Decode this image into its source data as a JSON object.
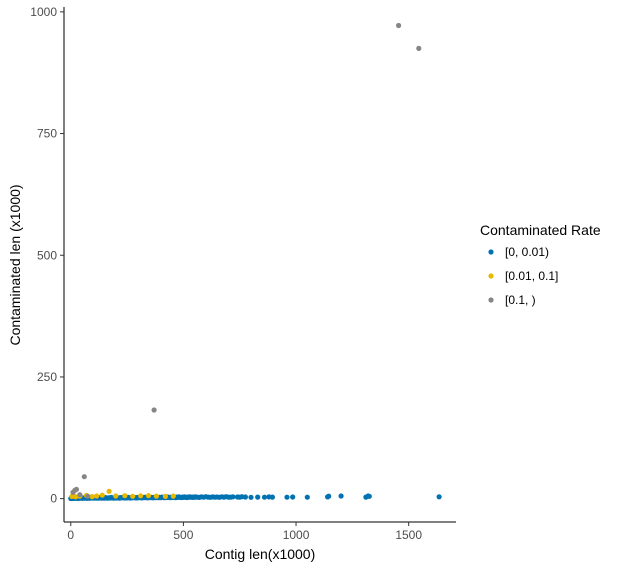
{
  "chart_data": {
    "type": "scatter",
    "xlabel": "Contig len(x1000)",
    "ylabel": "Contaminated len (x1000)",
    "xlim": [
      -30,
      1710
    ],
    "ylim": [
      -48,
      1010
    ],
    "xticks": [
      0,
      500,
      1000,
      1500
    ],
    "yticks": [
      0,
      250,
      500,
      750,
      1000
    ],
    "grid": false,
    "legend": {
      "title": "Contaminated Rate",
      "placement": "right"
    },
    "series": [
      {
        "name": "[0, 0.01)",
        "color": "#0072B2",
        "points": [
          [
            0,
            0.3
          ],
          [
            3,
            0.5
          ],
          [
            6,
            0.8
          ],
          [
            9,
            0.4
          ],
          [
            12,
            1.0
          ],
          [
            15,
            0.6
          ],
          [
            18,
            1.2
          ],
          [
            21,
            0.7
          ],
          [
            24,
            1.4
          ],
          [
            27,
            0.9
          ],
          [
            30,
            1.1
          ],
          [
            34,
            0.5
          ],
          [
            38,
            1.5
          ],
          [
            42,
            0.8
          ],
          [
            46,
            1.3
          ],
          [
            50,
            0.6
          ],
          [
            54,
            1.7
          ],
          [
            58,
            1.0
          ],
          [
            62,
            0.8
          ],
          [
            66,
            1.6
          ],
          [
            70,
            1.2
          ],
          [
            74,
            0.7
          ],
          [
            78,
            1.8
          ],
          [
            82,
            1.1
          ],
          [
            86,
            0.9
          ],
          [
            90,
            1.5
          ],
          [
            95,
            1.3
          ],
          [
            100,
            0.8
          ],
          [
            105,
            2.0
          ],
          [
            110,
            1.4
          ],
          [
            115,
            0.9
          ],
          [
            120,
            1.7
          ],
          [
            125,
            1.1
          ],
          [
            130,
            2.1
          ],
          [
            135,
            1.3
          ],
          [
            140,
            0.9
          ],
          [
            145,
            1.8
          ],
          [
            150,
            1.2
          ],
          [
            155,
            2.2
          ],
          [
            160,
            1.4
          ],
          [
            165,
            1.0
          ],
          [
            170,
            1.9
          ],
          [
            175,
            1.3
          ],
          [
            180,
            2.3
          ],
          [
            185,
            1.5
          ],
          [
            190,
            1.1
          ],
          [
            195,
            2.0
          ],
          [
            200,
            1.4
          ],
          [
            205,
            2.4
          ],
          [
            210,
            1.6
          ],
          [
            215,
            1.2
          ],
          [
            220,
            2.1
          ],
          [
            225,
            1.5
          ],
          [
            230,
            2.5
          ],
          [
            235,
            1.7
          ],
          [
            240,
            1.3
          ],
          [
            245,
            2.2
          ],
          [
            250,
            1.6
          ],
          [
            255,
            2.6
          ],
          [
            260,
            1.8
          ],
          [
            265,
            1.4
          ],
          [
            270,
            2.3
          ],
          [
            275,
            1.7
          ],
          [
            280,
            2.7
          ],
          [
            285,
            1.9
          ],
          [
            290,
            1.5
          ],
          [
            295,
            2.4
          ],
          [
            300,
            1.8
          ],
          [
            305,
            2.8
          ],
          [
            310,
            2.0
          ],
          [
            315,
            1.6
          ],
          [
            320,
            2.5
          ],
          [
            325,
            1.9
          ],
          [
            330,
            2.9
          ],
          [
            335,
            2.1
          ],
          [
            340,
            1.7
          ],
          [
            345,
            2.6
          ],
          [
            350,
            2.0
          ],
          [
            355,
            3.0
          ],
          [
            360,
            2.2
          ],
          [
            365,
            1.8
          ],
          [
            370,
            2.7
          ],
          [
            375,
            2.1
          ],
          [
            380,
            3.1
          ],
          [
            385,
            2.3
          ],
          [
            390,
            1.9
          ],
          [
            395,
            2.8
          ],
          [
            400,
            2.2
          ],
          [
            405,
            3.2
          ],
          [
            410,
            2.4
          ],
          [
            415,
            2.0
          ],
          [
            420,
            2.9
          ],
          [
            425,
            2.3
          ],
          [
            430,
            3.3
          ],
          [
            435,
            2.5
          ],
          [
            440,
            2.1
          ],
          [
            445,
            3.0
          ],
          [
            450,
            2.4
          ],
          [
            455,
            3.4
          ],
          [
            460,
            2.6
          ],
          [
            465,
            2.2
          ],
          [
            470,
            3.1
          ],
          [
            475,
            2.5
          ],
          [
            480,
            3.5
          ],
          [
            485,
            2.7
          ],
          [
            490,
            2.3
          ],
          [
            495,
            3.2
          ],
          [
            500,
            2.6
          ],
          [
            505,
            3.6
          ],
          [
            510,
            2.8
          ],
          [
            515,
            2.4
          ],
          [
            520,
            3.3
          ],
          [
            525,
            2.7
          ],
          [
            530,
            3.7
          ],
          [
            535,
            2.9
          ],
          [
            540,
            2.5
          ],
          [
            545,
            3.4
          ],
          [
            550,
            2.8
          ],
          [
            555,
            3.8
          ],
          [
            560,
            3.0
          ],
          [
            570,
            2.6
          ],
          [
            580,
            3.5
          ],
          [
            590,
            2.9
          ],
          [
            600,
            3.9
          ],
          [
            610,
            3.1
          ],
          [
            620,
            2.7
          ],
          [
            630,
            3.6
          ],
          [
            640,
            3.0
          ],
          [
            650,
            3.4
          ],
          [
            660,
            2.8
          ],
          [
            670,
            3.7
          ],
          [
            680,
            3.1
          ],
          [
            690,
            4.0
          ],
          [
            700,
            3.2
          ],
          [
            710,
            2.9
          ],
          [
            720,
            3.8
          ],
          [
            740,
            3.3
          ],
          [
            750,
            3.0
          ],
          [
            760,
            3.9
          ],
          [
            775,
            3.4
          ],
          [
            800,
            2.7
          ],
          [
            830,
            3.1
          ],
          [
            860,
            2.9
          ],
          [
            880,
            3.6
          ],
          [
            895,
            3.2
          ],
          [
            960,
            3.0
          ],
          [
            985,
            3.3
          ],
          [
            1050,
            3.0
          ],
          [
            1140,
            3.5
          ],
          [
            1145,
            5.1
          ],
          [
            1200,
            5.5
          ],
          [
            1310,
            3.2
          ],
          [
            1320,
            5.5
          ],
          [
            1325,
            4.8
          ],
          [
            1635,
            3.8
          ]
        ]
      },
      {
        "name": "[0.01, 0.1]",
        "color": "#E7B800",
        "points": [
          [
            5,
            4.5
          ],
          [
            12,
            6.2
          ],
          [
            22,
            3.8
          ],
          [
            40,
            5.0
          ],
          [
            70,
            6.5
          ],
          [
            95,
            4.2
          ],
          [
            115,
            5.5
          ],
          [
            140,
            7.0
          ],
          [
            170,
            15
          ],
          [
            200,
            5.5
          ],
          [
            240,
            6.0
          ],
          [
            275,
            4.8
          ],
          [
            310,
            5.8
          ],
          [
            345,
            6.3
          ],
          [
            380,
            5.2
          ],
          [
            420,
            4.6
          ],
          [
            455,
            5.3
          ]
        ]
      },
      {
        "name": "[0.1, )",
        "color": "#868686",
        "points": [
          [
            10,
            13
          ],
          [
            18,
            17
          ],
          [
            25,
            19
          ],
          [
            40,
            8
          ],
          [
            60,
            45
          ],
          [
            75,
            5
          ],
          [
            370,
            182
          ],
          [
            1455,
            972
          ],
          [
            1545,
            925
          ]
        ]
      }
    ]
  }
}
